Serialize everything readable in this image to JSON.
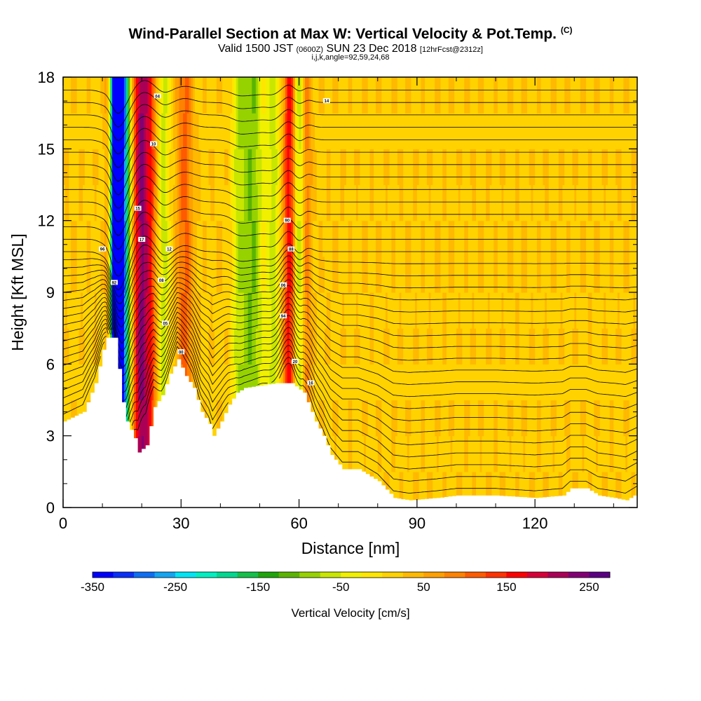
{
  "title_main": "Wind-Parallel Section at Max W: Vertical Velocity & Pot.Temp.",
  "title_mark": "(C)",
  "subtitle_a": "Valid 1500 JST",
  "subtitle_b": "(0600Z)",
  "subtitle_c": "SUN 23 Dec 2018",
  "subtitle_d": "[12hrFcst@2312z]",
  "params": "i,j,k,angle=92,59,24,68",
  "chart_data": {
    "type": "heatmap",
    "xlabel": "Distance [nm]",
    "ylabel": "Height [Kft MSL]",
    "xlim": [
      0,
      146
    ],
    "ylim": [
      0,
      18
    ],
    "x_ticks": [
      0,
      30,
      60,
      90,
      120
    ],
    "x_tick_labels": [
      "0",
      "30",
      "60",
      "90",
      "120"
    ],
    "y_ticks": [
      0,
      3,
      6,
      9,
      12,
      15,
      18
    ],
    "y_tick_labels": [
      "0",
      "3",
      "6",
      "9",
      "12",
      "15",
      "18"
    ],
    "colorbar": {
      "title": "Vertical Velocity [cm/s]",
      "min": -350,
      "max": 275,
      "step": 25,
      "tick_values": [
        -350,
        -250,
        -150,
        -50,
        50,
        150,
        250
      ],
      "tick_labels": [
        "-350",
        "-250",
        "-150",
        "-50",
        "50",
        "150",
        "250"
      ],
      "colors": [
        "#0000ff",
        "#0a2ff8",
        "#0c6ef4",
        "#13a5f2",
        "#00e5f5",
        "#00f0c0",
        "#00d890",
        "#14c04a",
        "#1ea50a",
        "#5ab400",
        "#96d200",
        "#c8e600",
        "#f0f000",
        "#ffe600",
        "#ffd200",
        "#ffb900",
        "#ffa000",
        "#ff8200",
        "#ff5a00",
        "#ff3200",
        "#ff0000",
        "#d70037",
        "#aa0055",
        "#820073",
        "#5a0082"
      ]
    },
    "terrain_profile_kft": [
      [
        0,
        3.6
      ],
      [
        5,
        4.0
      ],
      [
        8,
        5.2
      ],
      [
        10,
        6.6
      ],
      [
        11,
        7.1
      ],
      [
        13,
        7.1
      ],
      [
        14,
        5.8
      ],
      [
        15,
        4.4
      ],
      [
        16,
        3.6
      ],
      [
        18,
        2.9
      ],
      [
        19,
        2.3
      ],
      [
        21,
        2.6
      ],
      [
        23,
        4.2
      ],
      [
        25,
        4.7
      ],
      [
        27,
        5.6
      ],
      [
        29,
        6.2
      ],
      [
        31,
        5.5
      ],
      [
        33,
        5.0
      ],
      [
        35,
        4.0
      ],
      [
        37,
        3.5
      ],
      [
        38,
        3.0
      ],
      [
        40,
        3.6
      ],
      [
        42,
        4.3
      ],
      [
        44,
        4.8
      ],
      [
        46,
        5.0
      ],
      [
        50,
        5.1
      ],
      [
        54,
        5.2
      ],
      [
        58,
        5.2
      ],
      [
        61,
        4.8
      ],
      [
        64,
        3.6
      ],
      [
        66,
        3.0
      ],
      [
        68,
        2.2
      ],
      [
        71,
        1.6
      ],
      [
        75,
        1.6
      ],
      [
        80,
        1.1
      ],
      [
        84,
        0.4
      ],
      [
        88,
        0.3
      ],
      [
        95,
        0.4
      ],
      [
        100,
        0.5
      ],
      [
        110,
        0.5
      ],
      [
        120,
        0.4
      ],
      [
        127,
        0.5
      ],
      [
        129,
        0.8
      ],
      [
        133,
        0.8
      ],
      [
        136,
        0.5
      ],
      [
        140,
        0.4
      ],
      [
        143,
        0.3
      ],
      [
        146,
        0.6
      ]
    ],
    "velocity_features": [
      {
        "x_center": 13.5,
        "width": 1.8,
        "w": -350
      },
      {
        "x_center": 15.0,
        "width": 2.2,
        "w": -260
      },
      {
        "x_center": 11.5,
        "width": 1.0,
        "w": 120
      },
      {
        "x_center": 19.5,
        "width": 2.0,
        "w": 180
      },
      {
        "x_center": 22.0,
        "width": 2.0,
        "w": 110
      },
      {
        "x_center": 25.5,
        "width": 1.5,
        "w": -90
      },
      {
        "x_center": 31.0,
        "width": 2.0,
        "w": 90
      },
      {
        "x_center": 48.0,
        "width": 3.0,
        "w": -120
      },
      {
        "x_center": 44.5,
        "width": 1.5,
        "w": -60
      },
      {
        "x_center": 53.5,
        "width": 1.5,
        "w": -80
      },
      {
        "x_center": 57.5,
        "width": 1.5,
        "w": 140
      },
      {
        "x_center": 60.0,
        "width": 1.2,
        "w": -90
      },
      {
        "x_center": 62.0,
        "width": 1.2,
        "w": 70
      }
    ],
    "background_w": 20,
    "theta_contour_labels": [
      "04",
      "10",
      "15",
      "17",
      "12",
      "08",
      "05",
      "00",
      "96",
      "92",
      "90",
      "88",
      "06",
      "94",
      "20",
      "16",
      "14"
    ]
  }
}
